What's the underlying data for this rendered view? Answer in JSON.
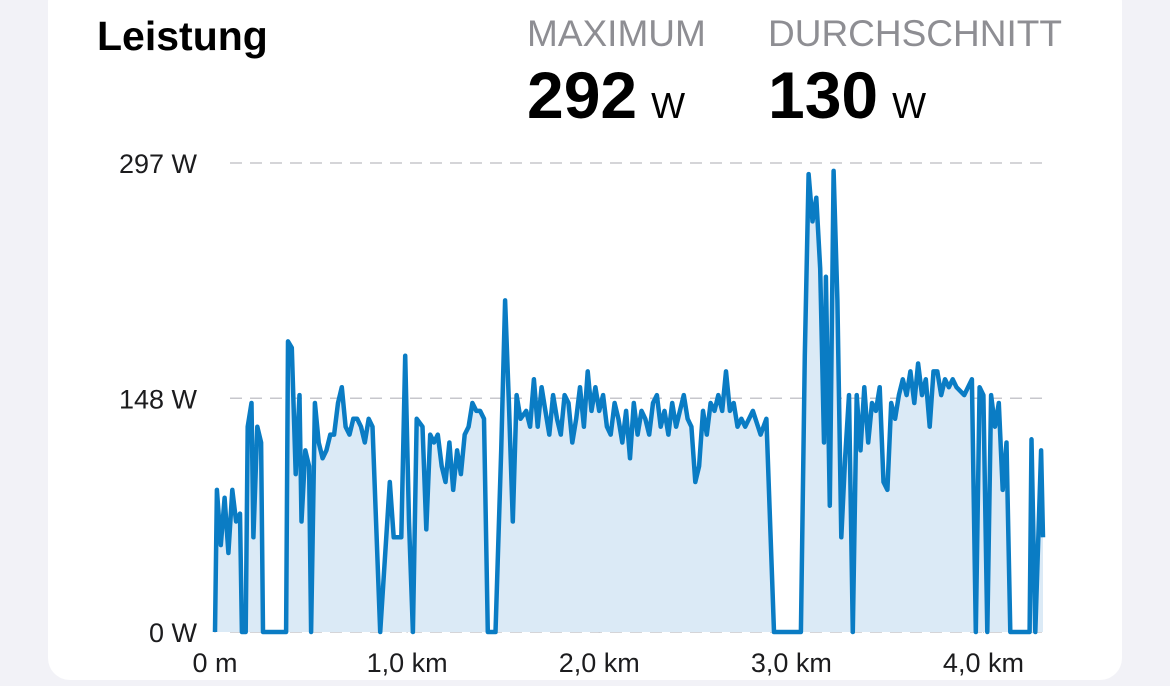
{
  "chart_data": {
    "type": "area",
    "title": "Leistung",
    "stats": [
      {
        "label": "MAXIMUM",
        "value": 292,
        "unit": "W"
      },
      {
        "label": "DURCHSCHNITT",
        "value": 130,
        "unit": "W"
      }
    ],
    "color": "#0a7cc4",
    "fill": "#dbeaf6",
    "grid": true,
    "xlim": [
      0,
      4.31
    ],
    "ylim": [
      0,
      297
    ],
    "xticks": [
      {
        "value": 0,
        "label": "0 m"
      },
      {
        "value": 1,
        "label": "1,0 km"
      },
      {
        "value": 2,
        "label": "2,0 km"
      },
      {
        "value": 3,
        "label": "3,0 km"
      },
      {
        "value": 4,
        "label": "4,0 km"
      }
    ],
    "yticks": [
      {
        "value": 0,
        "label": "0 W"
      },
      {
        "value": 148,
        "label": "148 W"
      },
      {
        "value": 297,
        "label": "297 W"
      }
    ],
    "x": [
      0,
      0.01,
      0.03,
      0.05,
      0.07,
      0.09,
      0.11,
      0.13,
      0.14,
      0.16,
      0.17,
      0.19,
      0.2,
      0.22,
      0.24,
      0.25,
      0.37,
      0.38,
      0.4,
      0.42,
      0.44,
      0.45,
      0.47,
      0.49,
      0.5,
      0.52,
      0.54,
      0.56,
      0.58,
      0.6,
      0.62,
      0.64,
      0.66,
      0.68,
      0.7,
      0.72,
      0.74,
      0.76,
      0.78,
      0.8,
      0.82,
      0.86,
      0.91,
      0.93,
      0.97,
      0.99,
      1.01,
      1.03,
      1.05,
      1.08,
      1.1,
      1.12,
      1.14,
      1.16,
      1.18,
      1.2,
      1.22,
      1.24,
      1.26,
      1.28,
      1.3,
      1.32,
      1.34,
      1.36,
      1.38,
      1.4,
      1.42,
      1.46,
      1.49,
      1.51,
      1.53,
      1.55,
      1.57,
      1.59,
      1.62,
      1.64,
      1.66,
      1.68,
      1.7,
      1.72,
      1.74,
      1.76,
      1.78,
      1.8,
      1.82,
      1.84,
      1.86,
      1.88,
      1.9,
      1.92,
      1.94,
      1.96,
      1.98,
      2,
      2.02,
      2.04,
      2.06,
      2.08,
      2.1,
      2.12,
      2.14,
      2.16,
      2.18,
      2.2,
      2.22,
      2.24,
      2.26,
      2.28,
      2.3,
      2.32,
      2.34,
      2.36,
      2.38,
      2.4,
      2.42,
      2.44,
      2.46,
      2.48,
      2.5,
      2.52,
      2.54,
      2.56,
      2.58,
      2.6,
      2.62,
      2.64,
      2.66,
      2.68,
      2.7,
      2.72,
      2.74,
      2.76,
      2.8,
      2.84,
      2.87,
      2.91,
      3.05,
      3.07,
      3.09,
      3.11,
      3.13,
      3.15,
      3.17,
      3.18,
      3.2,
      3.22,
      3.24,
      3.26,
      3.28,
      3.3,
      3.32,
      3.34,
      3.36,
      3.38,
      3.4,
      3.42,
      3.44,
      3.46,
      3.48,
      3.5,
      3.52,
      3.54,
      3.56,
      3.58,
      3.6,
      3.62,
      3.64,
      3.66,
      3.68,
      3.7,
      3.72,
      3.74,
      3.76,
      3.78,
      3.8,
      3.82,
      3.84,
      3.86,
      3.9,
      3.94,
      3.96,
      3.98,
      4,
      4.02,
      4.04,
      4.06,
      4.08,
      4.1,
      4.12,
      4.14,
      4.24,
      4.25,
      4.27,
      4.3,
      4.31
    ],
    "values": [
      0,
      90,
      55,
      85,
      50,
      90,
      70,
      75,
      0,
      0,
      130,
      145,
      60,
      130,
      120,
      0,
      0,
      184,
      180,
      100,
      150,
      70,
      115,
      105,
      0,
      145,
      120,
      110,
      115,
      125,
      125,
      145,
      155,
      130,
      125,
      135,
      135,
      130,
      120,
      135,
      130,
      0,
      95,
      60,
      60,
      175,
      70,
      0,
      135,
      130,
      65,
      125,
      120,
      125,
      105,
      95,
      120,
      90,
      115,
      100,
      125,
      130,
      145,
      140,
      140,
      135,
      0,
      0,
      115,
      210,
      145,
      70,
      150,
      135,
      140,
      130,
      160,
      130,
      155,
      140,
      125,
      150,
      135,
      125,
      150,
      145,
      120,
      135,
      155,
      130,
      165,
      140,
      155,
      140,
      150,
      130,
      125,
      145,
      135,
      120,
      140,
      110,
      145,
      125,
      140,
      135,
      125,
      145,
      150,
      130,
      140,
      125,
      145,
      130,
      140,
      150,
      135,
      130,
      95,
      105,
      140,
      125,
      145,
      140,
      150,
      140,
      165,
      140,
      145,
      130,
      135,
      130,
      140,
      125,
      135,
      0,
      0,
      175,
      290,
      260,
      275,
      230,
      120,
      225,
      80,
      292,
      210,
      60,
      110,
      150,
      0,
      150,
      115,
      155,
      120,
      145,
      140,
      155,
      95,
      90,
      145,
      135,
      150,
      160,
      150,
      165,
      145,
      170,
      150,
      160,
      130,
      165,
      165,
      150,
      160,
      155,
      160,
      155,
      150,
      160,
      0,
      155,
      150,
      0,
      150,
      130,
      145,
      90,
      120,
      0,
      0,
      122,
      0,
      115,
      60
    ]
  }
}
